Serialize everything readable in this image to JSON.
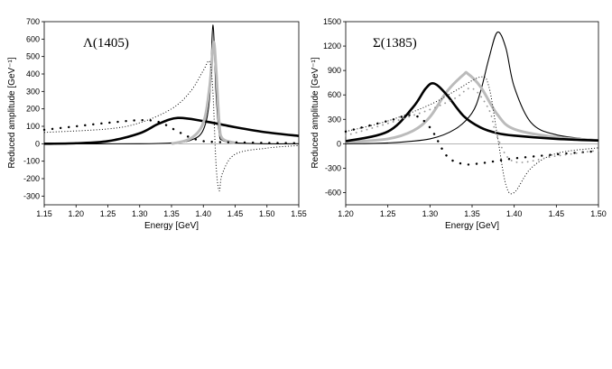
{
  "chart_data": [
    {
      "type": "line",
      "title": "Λ(1405)",
      "xlabel": "Energy [GeV]",
      "ylabel": "Reduced amplitude [GeV⁻¹]",
      "xlim": [
        1.15,
        1.55
      ],
      "ylim": [
        -350,
        700
      ],
      "xticks": [
        1.15,
        1.2,
        1.25,
        1.3,
        1.35,
        1.4,
        1.45,
        1.5,
        1.55
      ],
      "xtick_labels": [
        "1.15",
        "1.20",
        "1.25",
        "1.30",
        "1.35",
        "1.40",
        "1.45",
        "1.50",
        "1.55"
      ],
      "yticks": [
        700,
        600,
        500,
        400,
        300,
        200,
        100,
        0,
        -100,
        -200,
        -300
      ],
      "ytick_labels": [
        "700",
        "600",
        "500",
        "400",
        "300",
        "200",
        "100",
        "0",
        "-100",
        "-200",
        "-300"
      ],
      "series": [
        {
          "name": "thin solid",
          "style": "thin-solid",
          "color": "#000000",
          "x": [
            1.15,
            1.3,
            1.35,
            1.38,
            1.4,
            1.41,
            1.415,
            1.42,
            1.425,
            1.43,
            1.45,
            1.5,
            1.55
          ],
          "y": [
            0,
            0,
            5,
            20,
            80,
            270,
            680,
            290,
            60,
            20,
            5,
            0,
            0
          ]
        },
        {
          "name": "thick solid",
          "style": "thick-solid",
          "color": "#000000",
          "x": [
            1.15,
            1.2,
            1.25,
            1.3,
            1.33,
            1.36,
            1.4,
            1.45,
            1.5,
            1.55
          ],
          "y": [
            0,
            3,
            15,
            60,
            115,
            148,
            130,
            95,
            65,
            45
          ]
        },
        {
          "name": "grey solid",
          "style": "grey-solid",
          "color": "#bbbbbb",
          "x": [
            1.35,
            1.38,
            1.4,
            1.41,
            1.416,
            1.42,
            1.425,
            1.43,
            1.45
          ],
          "y": [
            0,
            30,
            120,
            330,
            580,
            430,
            120,
            30,
            5
          ]
        },
        {
          "name": "fine dotted",
          "style": "fine-dots",
          "color": "#000000",
          "x": [
            1.15,
            1.25,
            1.3,
            1.35,
            1.38,
            1.4,
            1.41,
            1.415,
            1.42,
            1.425,
            1.43,
            1.45,
            1.5,
            1.55
          ],
          "y": [
            65,
            85,
            120,
            200,
            300,
            420,
            470,
            300,
            -120,
            -270,
            -170,
            -60,
            -25,
            -10
          ]
        },
        {
          "name": "coarse dots",
          "style": "coarse-dots",
          "color": "#000000",
          "x": [
            1.15,
            1.2,
            1.25,
            1.3,
            1.33,
            1.36,
            1.38,
            1.4,
            1.42,
            1.45,
            1.5,
            1.55
          ],
          "y": [
            80,
            100,
            120,
            135,
            125,
            70,
            35,
            15,
            10,
            8,
            5,
            3
          ]
        }
      ]
    },
    {
      "type": "line",
      "title": "Σ(1385)",
      "xlabel": "Energy [GeV]",
      "ylabel": "Reduced amplitude [GeV⁻¹]",
      "xlim": [
        1.2,
        1.5
      ],
      "ylim": [
        -750,
        1500
      ],
      "xticks": [
        1.2,
        1.25,
        1.3,
        1.35,
        1.4,
        1.45,
        1.5
      ],
      "xtick_labels": [
        "1.20",
        "1.25",
        "1.30",
        "1.35",
        "1.40",
        "1.45",
        "1.50"
      ],
      "yticks": [
        1500,
        1200,
        900,
        600,
        300,
        0,
        -300,
        -600
      ],
      "ytick_labels": [
        "1500",
        "1200",
        "900",
        "600",
        "300",
        "0",
        "-300",
        "-600"
      ],
      "series": [
        {
          "name": "thin solid",
          "style": "thin-solid",
          "color": "#000000",
          "x": [
            1.2,
            1.25,
            1.3,
            1.33,
            1.35,
            1.36,
            1.37,
            1.38,
            1.39,
            1.4,
            1.42,
            1.45,
            1.5
          ],
          "y": [
            0,
            10,
            60,
            180,
            380,
            640,
            1050,
            1370,
            1180,
            700,
            260,
            110,
            45
          ]
        },
        {
          "name": "grey solid",
          "style": "grey-solid",
          "color": "#bbbbbb",
          "x": [
            1.2,
            1.25,
            1.28,
            1.3,
            1.32,
            1.34,
            1.345,
            1.36,
            1.38,
            1.4,
            1.45,
            1.5
          ],
          "y": [
            20,
            60,
            160,
            330,
            640,
            850,
            860,
            700,
            360,
            180,
            80,
            40
          ]
        },
        {
          "name": "thick solid",
          "style": "thick-solid",
          "color": "#000000",
          "x": [
            1.2,
            1.25,
            1.28,
            1.295,
            1.305,
            1.32,
            1.34,
            1.36,
            1.38,
            1.4,
            1.45,
            1.5
          ],
          "y": [
            30,
            150,
            450,
            680,
            740,
            600,
            340,
            200,
            130,
            100,
            60,
            40
          ]
        },
        {
          "name": "fine dotted",
          "style": "fine-dots",
          "color": "#000000",
          "x": [
            1.2,
            1.25,
            1.3,
            1.33,
            1.36,
            1.37,
            1.38,
            1.39,
            1.4,
            1.42,
            1.45,
            1.5
          ],
          "y": [
            150,
            280,
            480,
            650,
            820,
            700,
            100,
            -500,
            -600,
            -300,
            -120,
            -50
          ]
        },
        {
          "name": "coarse dots",
          "style": "coarse-dots",
          "color": "#000000",
          "x": [
            1.2,
            1.25,
            1.28,
            1.3,
            1.32,
            1.34,
            1.36,
            1.38,
            1.4,
            1.45,
            1.5
          ],
          "y": [
            150,
            280,
            350,
            200,
            -150,
            -250,
            -240,
            -210,
            -180,
            -130,
            -90
          ]
        },
        {
          "name": "grey dots",
          "style": "grey-dots",
          "color": "#999999",
          "x": [
            1.2,
            1.25,
            1.3,
            1.33,
            1.35,
            1.37,
            1.38,
            1.4,
            1.45,
            1.5
          ],
          "y": [
            100,
            250,
            420,
            560,
            680,
            420,
            80,
            -220,
            -150,
            -80
          ]
        }
      ]
    }
  ]
}
